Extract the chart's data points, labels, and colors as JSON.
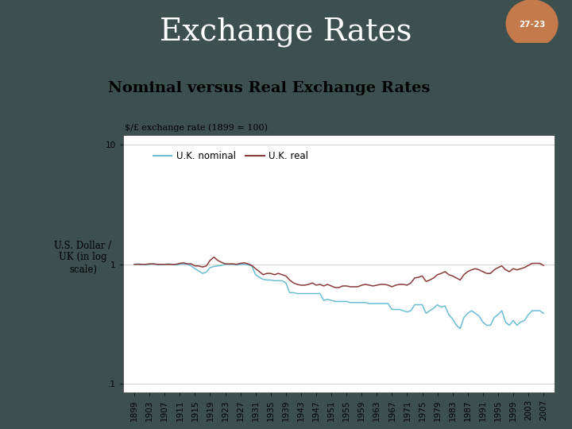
{
  "title": "Exchange Rates",
  "subtitle": "Nominal versus Real Exchange Rates",
  "slide_bg": "#3d5050",
  "content_bg": "#ddd8c0",
  "chart_bg": "#f5f2e8",
  "chart_inner_bg": "#ffffff",
  "badge_color": "#c47a4a",
  "badge_text": "27-23",
  "ylabel_text": "U.S. Dollar /\nUK (in log\nscale)",
  "chart_label": "$/£ exchange rate (1899 = 100)",
  "nominal_color": "#6bbdd4",
  "real_color": "#8b3a3a",
  "legend_nominal": "U.K. nominal",
  "legend_real": "U.K. real",
  "years": [
    1899,
    1900,
    1901,
    1902,
    1903,
    1904,
    1905,
    1906,
    1907,
    1908,
    1909,
    1910,
    1911,
    1912,
    1913,
    1914,
    1915,
    1916,
    1917,
    1918,
    1919,
    1920,
    1921,
    1922,
    1923,
    1924,
    1925,
    1926,
    1927,
    1928,
    1929,
    1930,
    1931,
    1932,
    1933,
    1934,
    1935,
    1936,
    1937,
    1938,
    1939,
    1940,
    1941,
    1942,
    1943,
    1944,
    1945,
    1946,
    1947,
    1948,
    1949,
    1950,
    1951,
    1952,
    1953,
    1954,
    1955,
    1956,
    1957,
    1958,
    1959,
    1960,
    1961,
    1962,
    1963,
    1964,
    1965,
    1966,
    1967,
    1968,
    1969,
    1970,
    1971,
    1972,
    1973,
    1974,
    1975,
    1976,
    1977,
    1978,
    1979,
    1980,
    1981,
    1982,
    1983,
    1984,
    1985,
    1986,
    1987,
    1988,
    1989,
    1990,
    1991,
    1992,
    1993,
    1994,
    1995,
    1996,
    1997,
    1998,
    1999,
    2000,
    2001,
    2002,
    2003,
    2004,
    2005,
    2006,
    2007
  ],
  "nominal": [
    1.0,
    1.01,
    1.0,
    0.99,
    1.0,
    1.01,
    1.0,
    0.99,
    1.0,
    1.01,
    1.0,
    0.99,
    1.0,
    1.01,
    1.0,
    0.97,
    0.92,
    0.88,
    0.84,
    0.86,
    0.94,
    0.96,
    0.97,
    0.98,
    1.0,
    1.0,
    1.0,
    0.99,
    1.0,
    1.0,
    0.99,
    0.97,
    0.82,
    0.78,
    0.75,
    0.74,
    0.74,
    0.73,
    0.73,
    0.73,
    0.7,
    0.58,
    0.58,
    0.57,
    0.57,
    0.57,
    0.57,
    0.57,
    0.57,
    0.57,
    0.5,
    0.51,
    0.5,
    0.49,
    0.49,
    0.49,
    0.49,
    0.48,
    0.48,
    0.48,
    0.48,
    0.48,
    0.47,
    0.47,
    0.47,
    0.47,
    0.47,
    0.47,
    0.42,
    0.42,
    0.42,
    0.41,
    0.4,
    0.41,
    0.46,
    0.46,
    0.46,
    0.39,
    0.41,
    0.43,
    0.46,
    0.44,
    0.45,
    0.38,
    0.35,
    0.31,
    0.29,
    0.36,
    0.39,
    0.41,
    0.39,
    0.37,
    0.33,
    0.31,
    0.31,
    0.36,
    0.38,
    0.41,
    0.33,
    0.31,
    0.34,
    0.31,
    0.33,
    0.34,
    0.38,
    0.41,
    0.41,
    0.41,
    0.39
  ],
  "real": [
    1.0,
    1.0,
    1.0,
    1.0,
    1.01,
    1.01,
    1.0,
    1.0,
    1.0,
    1.0,
    1.0,
    1.0,
    1.02,
    1.03,
    1.01,
    1.01,
    0.97,
    0.97,
    0.95,
    0.97,
    1.08,
    1.15,
    1.08,
    1.04,
    1.01,
    1.01,
    1.01,
    1.0,
    1.02,
    1.03,
    1.01,
    0.98,
    0.92,
    0.87,
    0.82,
    0.84,
    0.84,
    0.82,
    0.84,
    0.82,
    0.8,
    0.74,
    0.7,
    0.68,
    0.67,
    0.67,
    0.68,
    0.7,
    0.67,
    0.68,
    0.66,
    0.68,
    0.66,
    0.64,
    0.64,
    0.66,
    0.66,
    0.65,
    0.65,
    0.65,
    0.67,
    0.68,
    0.67,
    0.66,
    0.67,
    0.68,
    0.68,
    0.67,
    0.65,
    0.67,
    0.68,
    0.68,
    0.67,
    0.7,
    0.77,
    0.78,
    0.8,
    0.72,
    0.74,
    0.77,
    0.82,
    0.84,
    0.87,
    0.82,
    0.8,
    0.77,
    0.74,
    0.82,
    0.87,
    0.9,
    0.92,
    0.9,
    0.87,
    0.84,
    0.84,
    0.9,
    0.94,
    0.97,
    0.9,
    0.87,
    0.92,
    0.9,
    0.92,
    0.94,
    0.98,
    1.02,
    1.02,
    1.02,
    0.98
  ],
  "title_fontsize": 28,
  "subtitle_fontsize": 14,
  "chart_label_fontsize": 8,
  "tick_fontsize": 7.5,
  "ytick_labels": [
    ".1",
    "1",
    "10"
  ],
  "ytick_values": [
    0.1,
    1.0,
    10.0
  ]
}
